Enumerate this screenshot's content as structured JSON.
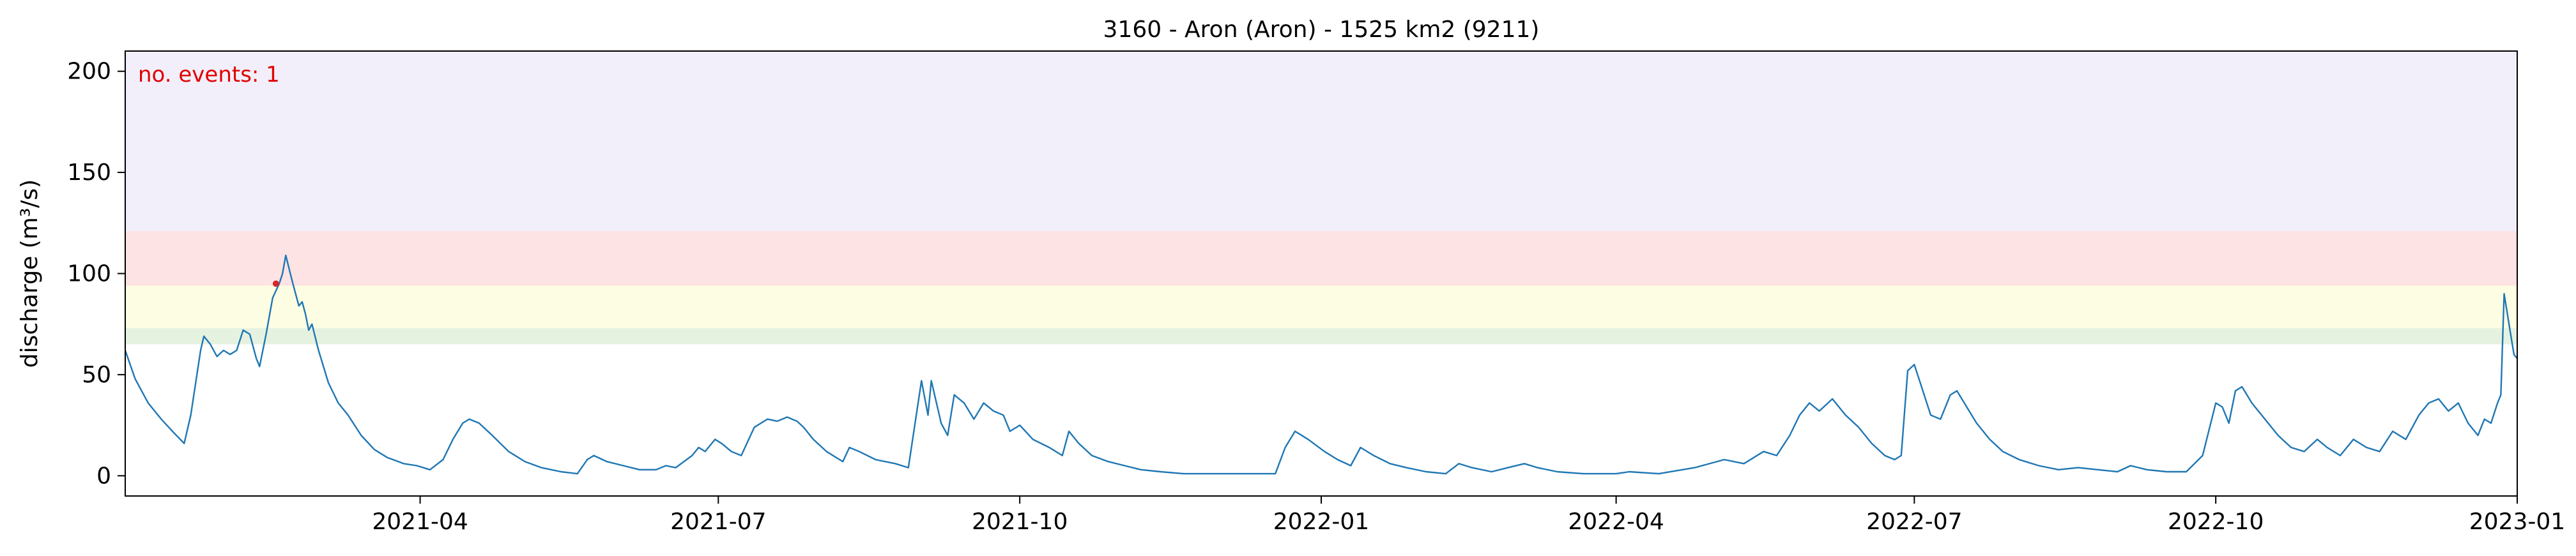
{
  "chart_data": {
    "type": "line",
    "title": "3160 - Aron (Aron) - 1525 km2 (9211)",
    "xlabel": "",
    "ylabel": "discharge (m³/s)",
    "xlim": [
      "2021-01-01",
      "2023-01-01"
    ],
    "ylim": [
      -10,
      210
    ],
    "x_ticks": [
      "2021-04",
      "2021-07",
      "2021-10",
      "2022-01",
      "2022-04",
      "2022-07",
      "2022-10",
      "2023-01"
    ],
    "y_ticks": [
      0,
      50,
      100,
      150,
      200
    ],
    "grid": false,
    "annotation": {
      "text": "no. events: 1",
      "color": "#e00000"
    },
    "bands": [
      {
        "from": 65,
        "to": 73,
        "color": "#e6f2e0"
      },
      {
        "from": 73,
        "to": 94,
        "color": "#fdfde3"
      },
      {
        "from": 94,
        "to": 121,
        "color": "#fee3e4"
      },
      {
        "from": 121,
        "to": 210,
        "color": "#f2effa"
      }
    ],
    "series": [
      {
        "color": "#1f77b4",
        "points": [
          [
            "2021-01-01",
            62
          ],
          [
            "2021-01-04",
            48
          ],
          [
            "2021-01-08",
            36
          ],
          [
            "2021-01-12",
            28
          ],
          [
            "2021-01-16",
            21
          ],
          [
            "2021-01-19",
            16
          ],
          [
            "2021-01-21",
            30
          ],
          [
            "2021-01-24",
            62
          ],
          [
            "2021-01-25",
            69
          ],
          [
            "2021-01-27",
            65
          ],
          [
            "2021-01-29",
            59
          ],
          [
            "2021-01-31",
            62
          ],
          [
            "2021-02-02",
            60
          ],
          [
            "2021-02-04",
            62
          ],
          [
            "2021-02-06",
            72
          ],
          [
            "2021-02-08",
            70
          ],
          [
            "2021-02-10",
            58
          ],
          [
            "2021-02-11",
            54
          ],
          [
            "2021-02-13",
            70
          ],
          [
            "2021-02-15",
            88
          ],
          [
            "2021-02-17",
            95
          ],
          [
            "2021-02-18",
            100
          ],
          [
            "2021-02-19",
            109
          ],
          [
            "2021-02-21",
            96
          ],
          [
            "2021-02-23",
            84
          ],
          [
            "2021-02-24",
            86
          ],
          [
            "2021-02-25",
            80
          ],
          [
            "2021-02-26",
            72
          ],
          [
            "2021-02-27",
            75
          ],
          [
            "2021-03-01",
            62
          ],
          [
            "2021-03-04",
            46
          ],
          [
            "2021-03-07",
            36
          ],
          [
            "2021-03-10",
            30
          ],
          [
            "2021-03-14",
            20
          ],
          [
            "2021-03-18",
            13
          ],
          [
            "2021-03-22",
            9
          ],
          [
            "2021-03-27",
            6
          ],
          [
            "2021-03-31",
            5
          ],
          [
            "2021-04-04",
            3
          ],
          [
            "2021-04-08",
            8
          ],
          [
            "2021-04-11",
            18
          ],
          [
            "2021-04-14",
            26
          ],
          [
            "2021-04-16",
            28
          ],
          [
            "2021-04-19",
            26
          ],
          [
            "2021-04-23",
            20
          ],
          [
            "2021-04-28",
            12
          ],
          [
            "2021-05-03",
            7
          ],
          [
            "2021-05-08",
            4
          ],
          [
            "2021-05-14",
            2
          ],
          [
            "2021-05-19",
            1
          ],
          [
            "2021-05-22",
            8
          ],
          [
            "2021-05-24",
            10
          ],
          [
            "2021-05-28",
            7
          ],
          [
            "2021-06-02",
            5
          ],
          [
            "2021-06-07",
            3
          ],
          [
            "2021-06-12",
            3
          ],
          [
            "2021-06-15",
            5
          ],
          [
            "2021-06-18",
            4
          ],
          [
            "2021-06-23",
            10
          ],
          [
            "2021-06-25",
            14
          ],
          [
            "2021-06-27",
            12
          ],
          [
            "2021-06-30",
            18
          ],
          [
            "2021-07-02",
            16
          ],
          [
            "2021-07-05",
            12
          ],
          [
            "2021-07-08",
            10
          ],
          [
            "2021-07-12",
            24
          ],
          [
            "2021-07-16",
            28
          ],
          [
            "2021-07-19",
            27
          ],
          [
            "2021-07-22",
            29
          ],
          [
            "2021-07-25",
            27
          ],
          [
            "2021-07-27",
            24
          ],
          [
            "2021-07-30",
            18
          ],
          [
            "2021-08-03",
            12
          ],
          [
            "2021-08-08",
            7
          ],
          [
            "2021-08-10",
            14
          ],
          [
            "2021-08-13",
            12
          ],
          [
            "2021-08-18",
            8
          ],
          [
            "2021-08-24",
            6
          ],
          [
            "2021-08-28",
            4
          ],
          [
            "2021-09-01",
            47
          ],
          [
            "2021-09-03",
            30
          ],
          [
            "2021-09-04",
            47
          ],
          [
            "2021-09-07",
            26
          ],
          [
            "2021-09-09",
            20
          ],
          [
            "2021-09-11",
            40
          ],
          [
            "2021-09-14",
            36
          ],
          [
            "2021-09-17",
            28
          ],
          [
            "2021-09-20",
            36
          ],
          [
            "2021-09-23",
            32
          ],
          [
            "2021-09-26",
            30
          ],
          [
            "2021-09-28",
            22
          ],
          [
            "2021-10-01",
            25
          ],
          [
            "2021-10-05",
            18
          ],
          [
            "2021-10-10",
            14
          ],
          [
            "2021-10-14",
            10
          ],
          [
            "2021-10-16",
            22
          ],
          [
            "2021-10-19",
            16
          ],
          [
            "2021-10-23",
            10
          ],
          [
            "2021-10-28",
            7
          ],
          [
            "2021-11-02",
            5
          ],
          [
            "2021-11-07",
            3
          ],
          [
            "2021-11-13",
            2
          ],
          [
            "2021-11-20",
            1
          ],
          [
            "2021-12-01",
            1
          ],
          [
            "2021-12-10",
            1
          ],
          [
            "2021-12-18",
            1
          ],
          [
            "2021-12-21",
            14
          ],
          [
            "2021-12-24",
            22
          ],
          [
            "2021-12-28",
            18
          ],
          [
            "2022-01-02",
            12
          ],
          [
            "2022-01-06",
            8
          ],
          [
            "2022-01-10",
            5
          ],
          [
            "2022-01-13",
            14
          ],
          [
            "2022-01-17",
            10
          ],
          [
            "2022-01-22",
            6
          ],
          [
            "2022-01-27",
            4
          ],
          [
            "2022-02-02",
            2
          ],
          [
            "2022-02-08",
            1
          ],
          [
            "2022-02-12",
            6
          ],
          [
            "2022-02-16",
            4
          ],
          [
            "2022-02-22",
            2
          ],
          [
            "2022-02-27",
            4
          ],
          [
            "2022-03-04",
            6
          ],
          [
            "2022-03-08",
            4
          ],
          [
            "2022-03-14",
            2
          ],
          [
            "2022-03-22",
            1
          ],
          [
            "2022-04-01",
            1
          ],
          [
            "2022-04-05",
            2
          ],
          [
            "2022-04-14",
            1
          ],
          [
            "2022-04-25",
            4
          ],
          [
            "2022-05-04",
            8
          ],
          [
            "2022-05-10",
            6
          ],
          [
            "2022-05-16",
            12
          ],
          [
            "2022-05-20",
            10
          ],
          [
            "2022-05-24",
            20
          ],
          [
            "2022-05-27",
            30
          ],
          [
            "2022-05-30",
            36
          ],
          [
            "2022-06-02",
            32
          ],
          [
            "2022-06-06",
            38
          ],
          [
            "2022-06-10",
            30
          ],
          [
            "2022-06-14",
            24
          ],
          [
            "2022-06-18",
            16
          ],
          [
            "2022-06-22",
            10
          ],
          [
            "2022-06-25",
            8
          ],
          [
            "2022-06-27",
            10
          ],
          [
            "2022-06-29",
            52
          ],
          [
            "2022-07-01",
            55
          ],
          [
            "2022-07-03",
            45
          ],
          [
            "2022-07-06",
            30
          ],
          [
            "2022-07-09",
            28
          ],
          [
            "2022-07-12",
            40
          ],
          [
            "2022-07-14",
            42
          ],
          [
            "2022-07-17",
            34
          ],
          [
            "2022-07-20",
            26
          ],
          [
            "2022-07-24",
            18
          ],
          [
            "2022-07-28",
            12
          ],
          [
            "2022-08-02",
            8
          ],
          [
            "2022-08-08",
            5
          ],
          [
            "2022-08-14",
            3
          ],
          [
            "2022-08-20",
            4
          ],
          [
            "2022-08-26",
            3
          ],
          [
            "2022-09-01",
            2
          ],
          [
            "2022-09-05",
            5
          ],
          [
            "2022-09-10",
            3
          ],
          [
            "2022-09-16",
            2
          ],
          [
            "2022-09-22",
            2
          ],
          [
            "2022-09-27",
            10
          ],
          [
            "2022-10-01",
            36
          ],
          [
            "2022-10-03",
            34
          ],
          [
            "2022-10-05",
            26
          ],
          [
            "2022-10-07",
            42
          ],
          [
            "2022-10-09",
            44
          ],
          [
            "2022-10-12",
            36
          ],
          [
            "2022-10-16",
            28
          ],
          [
            "2022-10-20",
            20
          ],
          [
            "2022-10-24",
            14
          ],
          [
            "2022-10-28",
            12
          ],
          [
            "2022-11-01",
            18
          ],
          [
            "2022-11-04",
            14
          ],
          [
            "2022-11-08",
            10
          ],
          [
            "2022-11-12",
            18
          ],
          [
            "2022-11-16",
            14
          ],
          [
            "2022-11-20",
            12
          ],
          [
            "2022-11-24",
            22
          ],
          [
            "2022-11-28",
            18
          ],
          [
            "2022-12-02",
            30
          ],
          [
            "2022-12-05",
            36
          ],
          [
            "2022-12-08",
            38
          ],
          [
            "2022-12-11",
            32
          ],
          [
            "2022-12-14",
            36
          ],
          [
            "2022-12-17",
            26
          ],
          [
            "2022-12-20",
            20
          ],
          [
            "2022-12-22",
            28
          ],
          [
            "2022-12-24",
            26
          ],
          [
            "2022-12-26",
            36
          ],
          [
            "2022-12-27",
            40
          ],
          [
            "2022-12-28",
            90
          ],
          [
            "2022-12-29",
            80
          ],
          [
            "2022-12-30",
            70
          ],
          [
            "2022-12-31",
            60
          ],
          [
            "2023-01-01",
            58
          ]
        ]
      }
    ],
    "event_points": [
      {
        "x": "2021-02-16",
        "y": 95,
        "color": "#d62728"
      }
    ]
  }
}
